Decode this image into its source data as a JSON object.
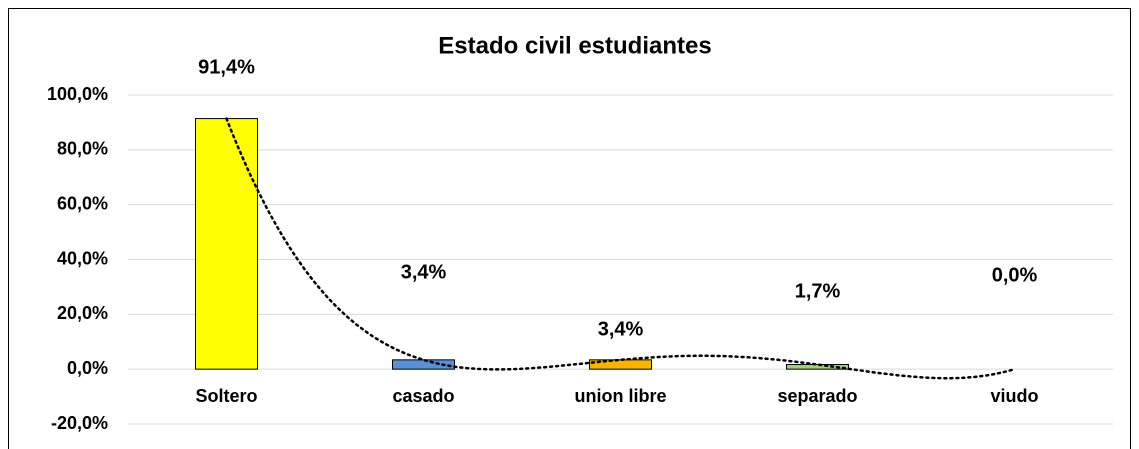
{
  "chart_data": {
    "type": "bar",
    "title": "Estado civil estudiantes",
    "categories": [
      "Soltero",
      "casado",
      "union libre",
      "separado",
      "viudo"
    ],
    "values": [
      91.4,
      3.4,
      3.4,
      1.7,
      0.0
    ],
    "value_labels": [
      "91,4%",
      "3,4%",
      "3,4%",
      "1,7%",
      "0,0%"
    ],
    "colors": [
      "#ffff00",
      "#5b8fd6",
      "#f7b500",
      "#9fd17a",
      "#a5a5a5"
    ],
    "ylim": [
      -20,
      100
    ],
    "yticks": [
      {
        "value": -20,
        "label": "-20,0%"
      },
      {
        "value": 0,
        "label": "0,0%"
      },
      {
        "value": 20,
        "label": "20,0%"
      },
      {
        "value": 40,
        "label": "40,0%"
      },
      {
        "value": 60,
        "label": "60,0%"
      },
      {
        "value": 80,
        "label": "80,0%"
      },
      {
        "value": 100,
        "label": "100,0%"
      }
    ],
    "grid": true,
    "trendline": "polynomial"
  }
}
